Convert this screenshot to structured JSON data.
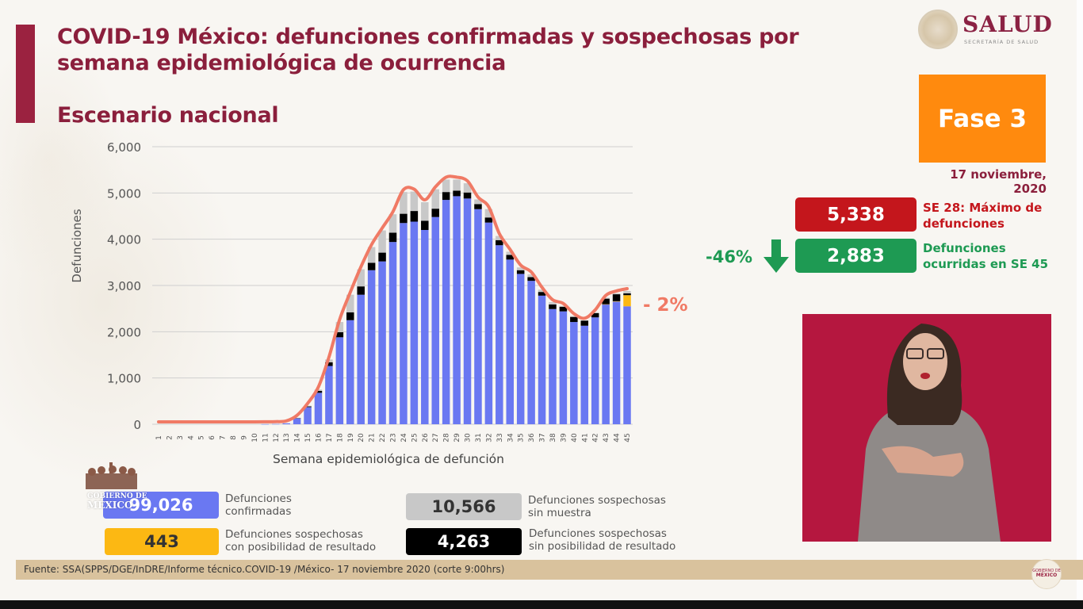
{
  "header": {
    "title": "COVID-19 México: defunciones confirmadas y sospechosas por semana epidemiológica de ocurrencia",
    "subtitle": "Escenario nacional",
    "logo": {
      "name": "SALUD",
      "sub": "SECRETARÍA DE SALUD"
    }
  },
  "status_panel": {
    "phase": "Fase 3",
    "date": "17 noviembre, 2020",
    "max_deaths": {
      "value": "5,338",
      "label_line1": "SE 28: Máximo de",
      "label_line2": "defunciones",
      "color": "#c4161c"
    },
    "current_deaths": {
      "value": "2,883",
      "label_line1": "Defunciones",
      "label_line2": "ocurridas en SE 45",
      "color": "#1e9a53"
    },
    "change_from_max": "-46%",
    "recent_change": "- 2%"
  },
  "legend": [
    {
      "value": "99,026",
      "label_line1": "Defunciones",
      "label_line2": "confirmadas",
      "color": "#6a78f2",
      "text_color": "#ffffff"
    },
    {
      "value": "10,566",
      "label_line1": "Defunciones sospechosas",
      "label_line2": "sin muestra",
      "color": "#c8c8c8",
      "text_color": "#333333"
    },
    {
      "value": "443",
      "label_line1": "Defunciones sospechosas",
      "label_line2": "con posibilidad de resultado",
      "color": "#fcb813",
      "text_color": "#333333"
    },
    {
      "value": "4,263",
      "label_line1": "Defunciones sospechosas",
      "label_line2": "sin posibilidad de resultado",
      "color": "#000000",
      "text_color": "#ffffff"
    }
  ],
  "overlay_logo": {
    "line1": "GOBIERNO DE",
    "line2": "MÉXICO"
  },
  "footer": {
    "source": "Fuente: SSA(SPPS/DGE/InDRE/Informe técnico.COVID-19 /México- 17 noviembre 2020 (corte 9:00hrs)"
  },
  "chart_data": {
    "type": "bar",
    "stacked": true,
    "title": "COVID-19 México: defunciones confirmadas y sospechosas por semana epidemiológica de ocurrencia",
    "subtitle": "Escenario nacional",
    "xlabel": "Semana epidemiológica de defunción",
    "ylabel": "Defunciones",
    "ylim": [
      0,
      6000
    ],
    "yticks": [
      "0",
      "1,000",
      "2,000",
      "3,000",
      "4,000",
      "5,000",
      "6,000"
    ],
    "grid": true,
    "categories": [
      "1",
      "2",
      "3",
      "4",
      "5",
      "6",
      "7",
      "8",
      "9",
      "10",
      "11",
      "12",
      "13",
      "14",
      "15",
      "16",
      "17",
      "18",
      "19",
      "20",
      "21",
      "22",
      "23",
      "24",
      "25",
      "26",
      "27",
      "28",
      "29",
      "30",
      "31",
      "32",
      "33",
      "34",
      "35",
      "36",
      "37",
      "38",
      "39",
      "40",
      "41",
      "42",
      "43",
      "44",
      "45"
    ],
    "series": [
      {
        "name": "Defunciones confirmadas",
        "color": "#6a78f2",
        "values": [
          0,
          0,
          0,
          0,
          0,
          0,
          0,
          0,
          0,
          0,
          2,
          5,
          20,
          130,
          370,
          680,
          1260,
          1880,
          2250,
          2800,
          3330,
          3520,
          3940,
          4350,
          4380,
          4200,
          4480,
          4850,
          4930,
          4880,
          4650,
          4360,
          3870,
          3560,
          3250,
          3100,
          2780,
          2490,
          2440,
          2210,
          2130,
          2310,
          2590,
          2650,
          2550
        ]
      },
      {
        "name": "Defunciones sospechosas sin posibilidad de resultado",
        "color": "#000000",
        "values": [
          0,
          0,
          0,
          0,
          0,
          0,
          0,
          0,
          0,
          0,
          0,
          0,
          0,
          5,
          15,
          40,
          80,
          110,
          170,
          180,
          160,
          190,
          200,
          200,
          230,
          200,
          180,
          170,
          120,
          130,
          110,
          110,
          110,
          100,
          80,
          80,
          80,
          100,
          100,
          110,
          110,
          90,
          120,
          150,
          40
        ]
      },
      {
        "name": "Defunciones sospechosas sin muestra",
        "color": "#c8c8c8",
        "values": [
          0,
          0,
          0,
          0,
          0,
          0,
          0,
          0,
          0,
          0,
          0,
          0,
          0,
          5,
          15,
          30,
          60,
          220,
          380,
          370,
          340,
          480,
          400,
          470,
          420,
          400,
          420,
          270,
          240,
          200,
          100,
          180,
          90,
          70,
          60,
          60,
          50,
          50,
          20,
          20,
          0,
          20,
          20,
          20,
          50
        ]
      },
      {
        "name": "Defunciones sospechosas con posibilidad de resultado",
        "color": "#fcb813",
        "values": [
          0,
          0,
          0,
          0,
          0,
          0,
          0,
          0,
          0,
          0,
          0,
          0,
          0,
          0,
          0,
          0,
          0,
          0,
          0,
          0,
          0,
          0,
          0,
          0,
          0,
          0,
          0,
          0,
          0,
          0,
          0,
          0,
          0,
          0,
          0,
          0,
          0,
          0,
          0,
          0,
          0,
          0,
          5,
          10,
          240
        ]
      }
    ],
    "trend_line": {
      "name": "Total (suavizado)",
      "color": "#f07a65"
    },
    "annotations": [
      "- 2%"
    ]
  }
}
